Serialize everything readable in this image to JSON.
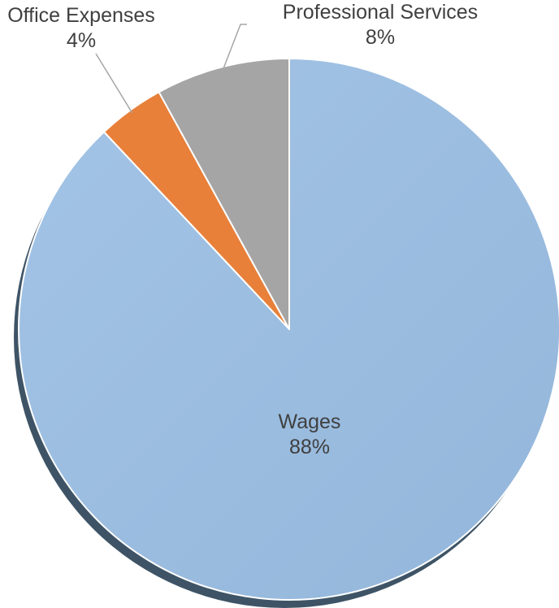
{
  "chart_data": {
    "type": "pie",
    "title": "",
    "slices": [
      {
        "label": "Wages",
        "value": 88,
        "display": "88%",
        "color": "#9abbdd"
      },
      {
        "label": "Office Expenses",
        "value": 4,
        "display": "4%",
        "color": "#e8803a"
      },
      {
        "label": "Professional Services",
        "value": 8,
        "display": "8%",
        "color": "#a5a5a5"
      }
    ],
    "shadow_color": "#3e5466",
    "leader_line_color": "#a6a6a6",
    "label_color": "#404040"
  }
}
